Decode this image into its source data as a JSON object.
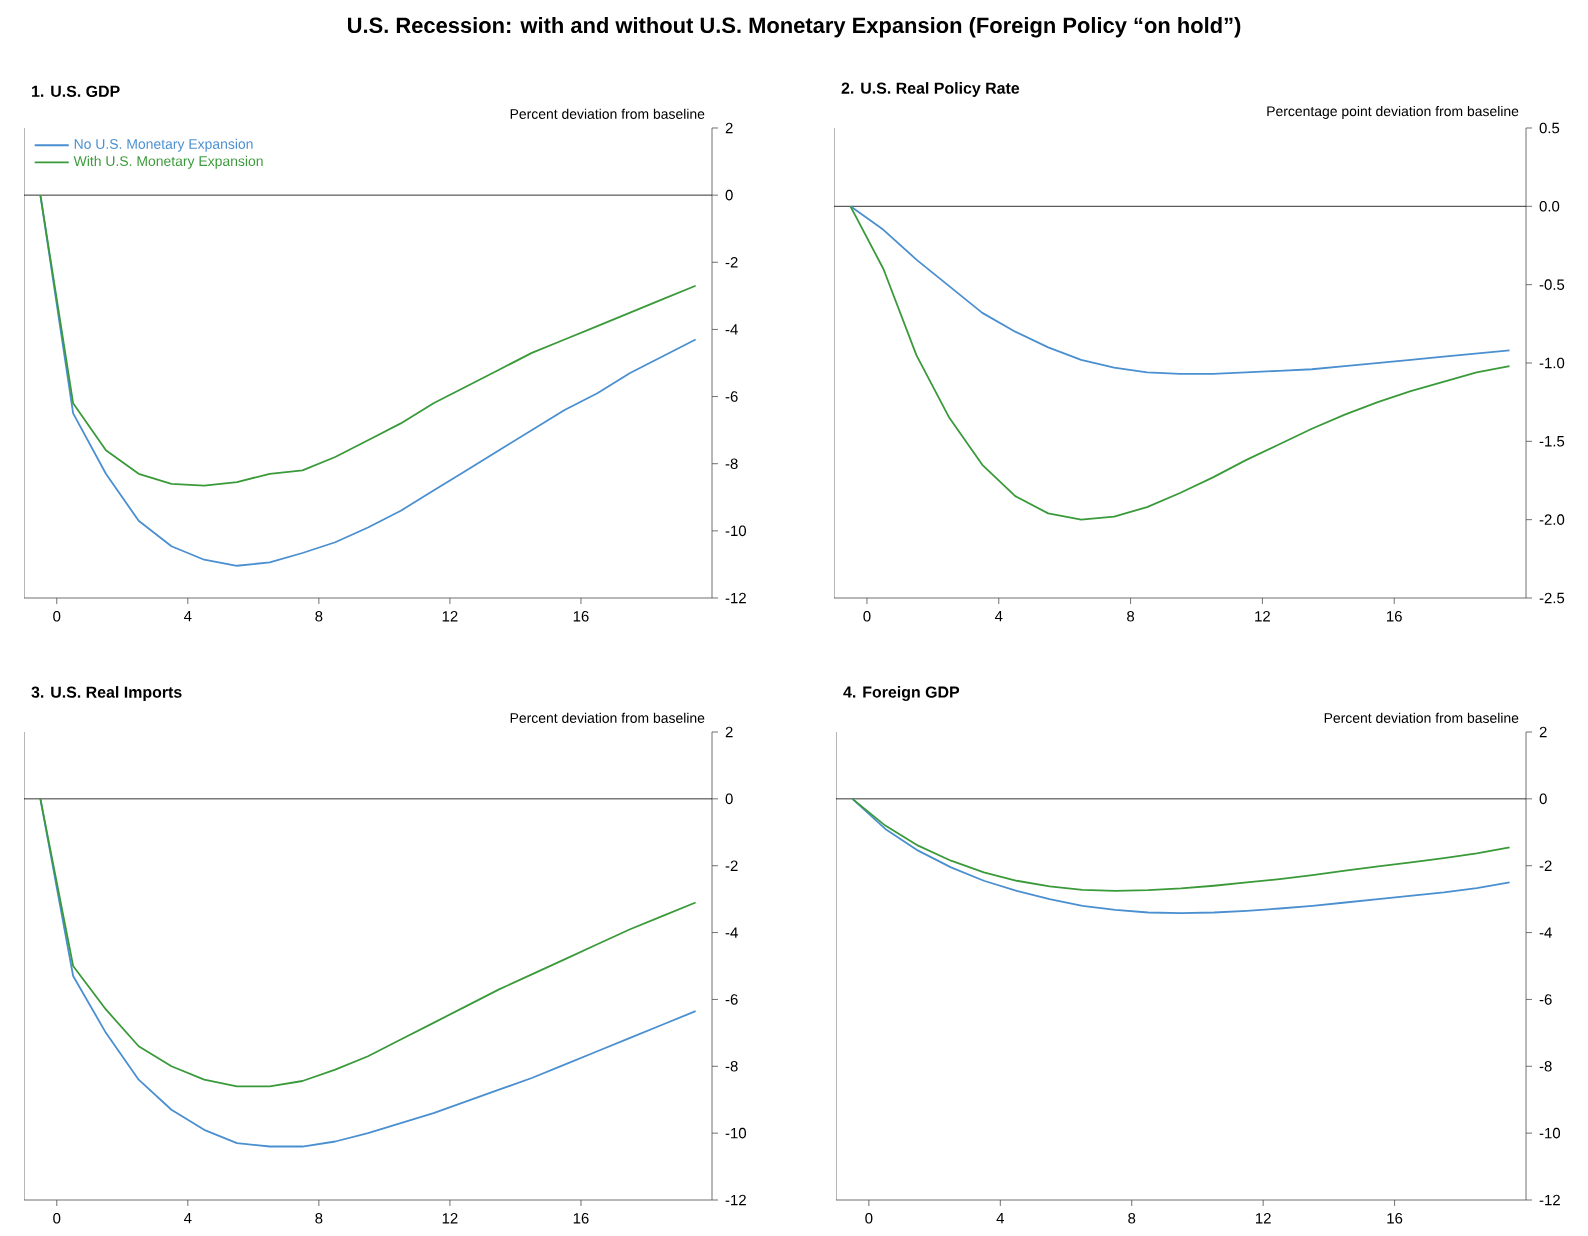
{
  "chart_data": [
    {
      "type": "other",
      "title": "U.S. Recession: with and without U.S. Monetary Expansion (Foreign Policy “on hold”)"
    },
    {
      "type": "line",
      "title": "1. U.S. GDP",
      "ylabel": "Percent deviation from baseline",
      "x": [
        -0.5,
        0.5,
        1.5,
        2.5,
        3.5,
        4.5,
        5.5,
        6.5,
        7.5,
        8.5,
        9.5,
        10.5,
        11.5,
        12.5,
        13.5,
        14.5,
        15.5,
        16.5,
        17.5,
        18.5,
        19.5
      ],
      "xlim": [
        -1,
        20
      ],
      "xticks": [
        0,
        4,
        8,
        12,
        16
      ],
      "ylim": [
        -12,
        2
      ],
      "yticks": [
        -12,
        -10,
        -8,
        -6,
        -4,
        -2,
        0,
        2
      ],
      "legend": "top left",
      "ref_lines": [
        {
          "axis": "y",
          "value": 0
        }
      ],
      "series": [
        {
          "name": "No U.S. Monetary Expansion",
          "color": "#4a8fd0",
          "values": [
            0,
            -6.5,
            -8.3,
            -9.7,
            -10.46,
            -10.86,
            -11.04,
            -10.94,
            -10.66,
            -10.34,
            -9.9,
            -9.4,
            -8.8,
            -8.2,
            -7.6,
            -7.0,
            -6.4,
            -5.9,
            -5.3,
            -4.8,
            -4.3
          ]
        },
        {
          "name": "With U.S. Monetary Expansion",
          "color": "#3a9a3a",
          "values": [
            0,
            -6.2,
            -7.6,
            -8.3,
            -8.6,
            -8.65,
            -8.55,
            -8.3,
            -8.2,
            -7.8,
            -7.3,
            -6.8,
            -6.2,
            -5.7,
            -5.2,
            -4.7,
            -4.3,
            -3.9,
            -3.5,
            -3.1,
            -2.7
          ]
        }
      ]
    },
    {
      "type": "line",
      "title": "2. U.S. Real Policy Rate",
      "ylabel": "Percentage point deviation from baseline",
      "x": [
        -0.5,
        0.5,
        1.5,
        2.5,
        3.5,
        4.5,
        5.5,
        6.5,
        7.5,
        8.5,
        9.5,
        10.5,
        11.5,
        12.5,
        13.5,
        14.5,
        15.5,
        16.5,
        17.5,
        18.5,
        19.5
      ],
      "xlim": [
        -1,
        20
      ],
      "xticks": [
        0,
        4,
        8,
        12,
        16
      ],
      "ylim": [
        -2.5,
        0.5
      ],
      "yticks": [
        -2.5,
        {
          "value": -2,
          "label": "-2.0"
        },
        -1.5,
        {
          "value": -1,
          "label": "-1.0"
        },
        -0.5,
        {
          "value": 0,
          "label": "0.0"
        },
        0.5
      ],
      "ref_lines": [
        {
          "axis": "y",
          "value": 0
        }
      ],
      "series": [
        {
          "color": "#4a8fd0",
          "values": [
            0,
            -0.15,
            -0.34,
            -0.51,
            -0.68,
            -0.8,
            -0.9,
            -0.98,
            -1.03,
            -1.06,
            -1.07,
            -1.07,
            -1.06,
            -1.05,
            -1.04,
            -1.02,
            -1.0,
            -0.98,
            -0.96,
            -0.94,
            -0.92
          ]
        },
        {
          "color": "#3a9a3a",
          "values": [
            0,
            -0.4,
            -0.95,
            -1.35,
            -1.65,
            -1.85,
            -1.96,
            -2.0,
            -1.98,
            -1.92,
            -1.83,
            -1.73,
            -1.62,
            -1.52,
            -1.42,
            -1.33,
            -1.25,
            -1.18,
            -1.12,
            -1.06,
            -1.02
          ]
        }
      ]
    },
    {
      "type": "line",
      "title": "3. U.S. Real Imports",
      "ylabel": "Percent deviation from baseline",
      "x": [
        -0.5,
        0.5,
        1.5,
        2.5,
        3.5,
        4.5,
        5.5,
        6.5,
        7.5,
        8.5,
        9.5,
        10.5,
        11.5,
        12.5,
        13.5,
        14.5,
        15.5,
        16.5,
        17.5,
        18.5,
        19.5
      ],
      "xlim": [
        -1,
        20
      ],
      "xticks": [
        0,
        4,
        8,
        12,
        16
      ],
      "ylim": [
        -12,
        2
      ],
      "yticks": [
        -12,
        -10,
        -8,
        -6,
        -4,
        -2,
        0,
        2
      ],
      "ref_lines": [
        {
          "axis": "y",
          "value": 0
        }
      ],
      "series": [
        {
          "color": "#4a8fd0",
          "values": [
            0,
            -5.3,
            -7.0,
            -8.4,
            -9.3,
            -9.9,
            -10.3,
            -10.4,
            -10.4,
            -10.25,
            -10.0,
            -9.7,
            -9.4,
            -9.05,
            -8.7,
            -8.35,
            -7.95,
            -7.55,
            -7.15,
            -6.75,
            -6.35
          ]
        },
        {
          "color": "#3a9a3a",
          "values": [
            0,
            -5.0,
            -6.3,
            -7.4,
            -8.0,
            -8.4,
            -8.6,
            -8.6,
            -8.44,
            -8.1,
            -7.7,
            -7.2,
            -6.7,
            -6.2,
            -5.7,
            -5.25,
            -4.8,
            -4.35,
            -3.9,
            -3.5,
            -3.1
          ]
        }
      ]
    },
    {
      "type": "line",
      "title": "4. Foreign GDP",
      "ylabel": "Percent deviation from baseline",
      "x": [
        -0.5,
        0.5,
        1.5,
        2.5,
        3.5,
        4.5,
        5.5,
        6.5,
        7.5,
        8.5,
        9.5,
        10.5,
        11.5,
        12.5,
        13.5,
        14.5,
        15.5,
        16.5,
        17.5,
        18.5,
        19.5
      ],
      "xlim": [
        -1,
        20
      ],
      "xticks": [
        0,
        4,
        8,
        12,
        16
      ],
      "ylim": [
        -12,
        2
      ],
      "yticks": [
        -12,
        -10,
        -8,
        -6,
        -4,
        -2,
        0,
        2
      ],
      "ref_lines": [
        {
          "axis": "y",
          "value": 0
        }
      ],
      "series": [
        {
          "color": "#4a8fd0",
          "values": [
            0,
            -0.9,
            -1.55,
            -2.05,
            -2.45,
            -2.75,
            -3.0,
            -3.2,
            -3.32,
            -3.4,
            -3.42,
            -3.4,
            -3.35,
            -3.28,
            -3.2,
            -3.1,
            -3.0,
            -2.9,
            -2.8,
            -2.67,
            -2.5
          ]
        },
        {
          "color": "#3a9a3a",
          "values": [
            0,
            -0.8,
            -1.4,
            -1.85,
            -2.2,
            -2.45,
            -2.62,
            -2.72,
            -2.75,
            -2.73,
            -2.68,
            -2.6,
            -2.5,
            -2.4,
            -2.28,
            -2.15,
            -2.02,
            -1.9,
            -1.77,
            -1.63,
            -1.45
          ]
        }
      ]
    }
  ]
}
